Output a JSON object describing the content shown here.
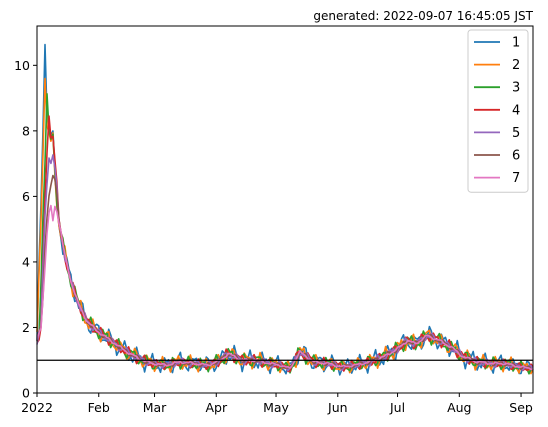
{
  "chart_data": {
    "type": "line",
    "annotation": "generated: 2022-09-07 16:45:05 JST",
    "x_tick_labels": [
      "2022",
      "Feb",
      "Mar",
      "Apr",
      "May",
      "Jun",
      "Jul",
      "Aug",
      "Sep"
    ],
    "x_ticks": [
      "2022-01-01",
      "2022-02-01",
      "2022-03-01",
      "2022-04-01",
      "2022-05-01",
      "2022-06-01",
      "2022-07-01",
      "2022-08-01",
      "2022-09-01"
    ],
    "xlim": [
      "2022-01-01",
      "2022-09-07"
    ],
    "ylim": [
      0,
      11.2
    ],
    "y_ticks": [
      0,
      2,
      4,
      6,
      8,
      10
    ],
    "reference_line": {
      "y": 1,
      "color": "#000000"
    },
    "legend_position": "top-right",
    "grid": false,
    "key_points": {
      "x": [
        "2022-01-01",
        "2022-01-03",
        "2022-01-06",
        "2022-01-09",
        "2022-01-12",
        "2022-01-15",
        "2022-01-18",
        "2022-01-22",
        "2022-01-26",
        "2022-01-31",
        "2022-02-07",
        "2022-02-14",
        "2022-02-21",
        "2022-02-28",
        "2022-03-07",
        "2022-03-14",
        "2022-03-21",
        "2022-03-28",
        "2022-04-03",
        "2022-04-07",
        "2022-04-14",
        "2022-04-21",
        "2022-04-28",
        "2022-05-03",
        "2022-05-08",
        "2022-05-13",
        "2022-05-20",
        "2022-05-27",
        "2022-06-03",
        "2022-06-10",
        "2022-06-17",
        "2022-06-24",
        "2022-07-01",
        "2022-07-06",
        "2022-07-10",
        "2022-07-16",
        "2022-07-22",
        "2022-07-28",
        "2022-08-03",
        "2022-08-10",
        "2022-08-17",
        "2022-08-24",
        "2022-08-31",
        "2022-09-07"
      ],
      "y": [
        1.6,
        2.0,
        4.8,
        7.3,
        5.2,
        4.2,
        3.4,
        2.7,
        2.2,
        1.9,
        1.6,
        1.3,
        1.05,
        0.9,
        0.85,
        0.95,
        0.9,
        0.85,
        1.0,
        1.2,
        1.0,
        1.0,
        0.9,
        0.85,
        0.75,
        1.25,
        0.95,
        0.9,
        0.8,
        0.85,
        0.95,
        1.1,
        1.35,
        1.6,
        1.5,
        1.75,
        1.6,
        1.4,
        1.1,
        0.95,
        0.9,
        0.9,
        0.8,
        0.75
      ]
    },
    "series": [
      {
        "name": "1",
        "color": "#1f77b4",
        "window": 1,
        "peak": 10.7,
        "peak_date": "2022-01-05",
        "noise": 0.22
      },
      {
        "name": "2",
        "color": "#ff7f0e",
        "window": 2,
        "peak": 9.85,
        "peak_date": "2022-01-05",
        "noise": 0.18
      },
      {
        "name": "3",
        "color": "#2ca02c",
        "window": 3,
        "peak": 8.95,
        "peak_date": "2022-01-06",
        "noise": 0.15
      },
      {
        "name": "4",
        "color": "#d62728",
        "window": 4,
        "peak": 8.5,
        "peak_date": "2022-01-07",
        "noise": 0.12
      },
      {
        "name": "5",
        "color": "#9467bd",
        "window": 5,
        "peak": 7.3,
        "peak_date": "2022-01-07",
        "noise": 0.09
      },
      {
        "name": "6",
        "color": "#8c564b",
        "window": 6,
        "peak": 6.3,
        "peak_date": "2022-01-08",
        "noise": 0.06
      },
      {
        "name": "7",
        "color": "#e377c2",
        "window": 7,
        "peak": 5.25,
        "peak_date": "2022-01-09",
        "noise": 0.03
      }
    ]
  }
}
